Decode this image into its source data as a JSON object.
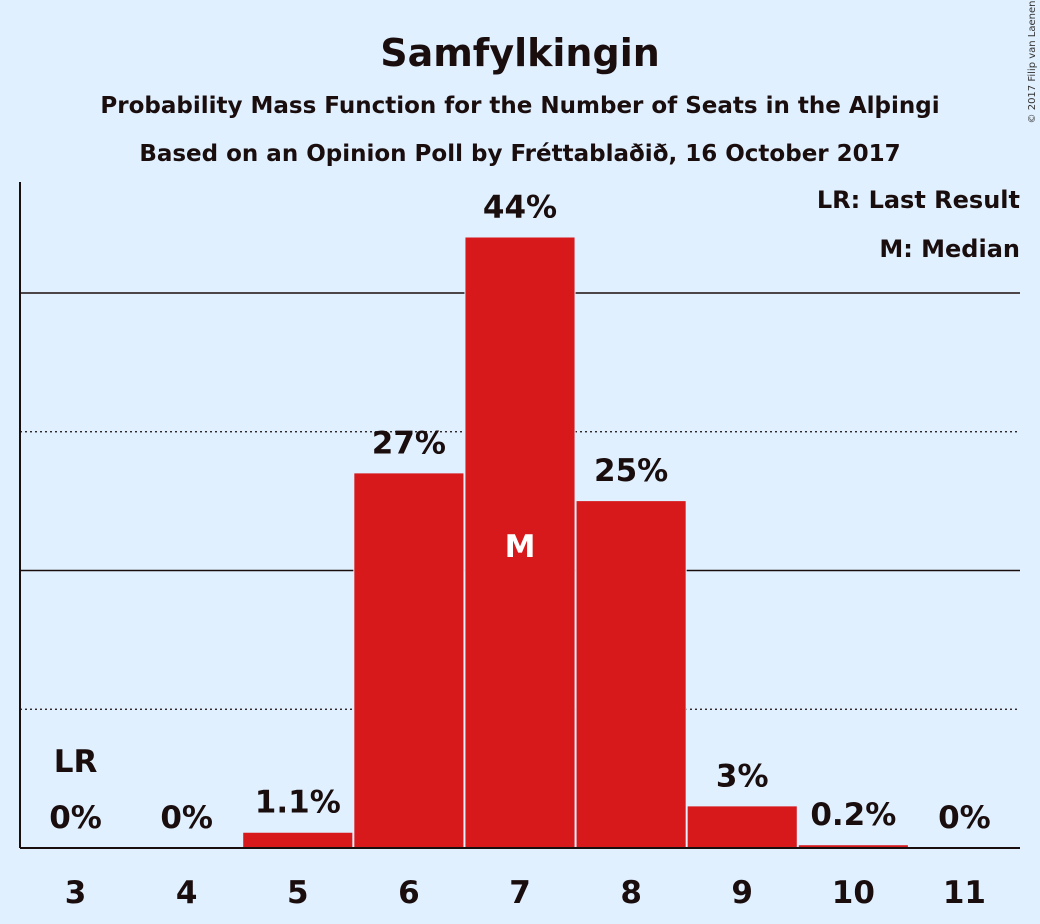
{
  "chart_data": {
    "type": "bar",
    "title": "Samfylkingin",
    "subtitle": "Probability Mass Function for the Number of Seats in the Alþingi",
    "subtitle2": "Based on an Opinion Poll by Fréttablaðið, 16 October 2017",
    "categories": [
      "3",
      "4",
      "5",
      "6",
      "7",
      "8",
      "9",
      "10",
      "11"
    ],
    "values": [
      0,
      0,
      1.1,
      27,
      44,
      25,
      3,
      0.2,
      0
    ],
    "value_labels": [
      "0%",
      "0%",
      "1.1%",
      "27%",
      "44%",
      "25%",
      "3%",
      "0.2%",
      "0%"
    ],
    "ylim": [
      0,
      48
    ],
    "gridlines": [
      {
        "value": 10,
        "style": "dotted"
      },
      {
        "value": 20,
        "style": "solid"
      },
      {
        "value": 30,
        "style": "dotted"
      },
      {
        "value": 40,
        "style": "solid"
      }
    ],
    "last_result": {
      "category": "3",
      "label": "LR"
    },
    "median": {
      "category": "7",
      "label": "M"
    },
    "legend": [
      "LR: Last Result",
      "M: Median"
    ],
    "legend_position": "top-right",
    "bar_color": "#d7191c",
    "background_color": "#e0f0ff"
  },
  "copyright": "© 2017 Filip van Laenen"
}
